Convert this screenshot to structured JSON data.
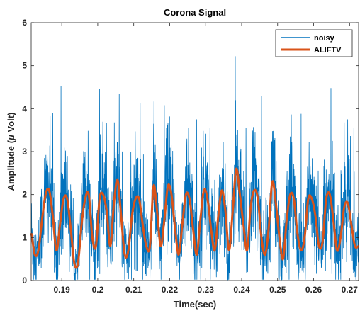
{
  "chart_data": {
    "type": "line",
    "title": "Corona Signal",
    "xlabel": "Time(sec)",
    "ylabel_prefix": "Amplitude (",
    "ylabel_mu": "μ",
    "ylabel_suffix": " Volt)",
    "xlim": [
      0.1815,
      0.2725
    ],
    "ylim": [
      0,
      6
    ],
    "xticks": [
      0.19,
      0.2,
      0.21,
      0.22,
      0.23,
      0.24,
      0.25,
      0.26,
      0.27
    ],
    "xtick_labels": [
      "0.19",
      "0.2",
      "0.21",
      "0.22",
      "0.23",
      "0.24",
      "0.25",
      "0.26",
      "0.27"
    ],
    "yticks": [
      0,
      1,
      2,
      3,
      4,
      5,
      6
    ],
    "ytick_labels": [
      "0",
      "1",
      "2",
      "3",
      "4",
      "5",
      "6"
    ],
    "grid": false,
    "legend_position": "top-right",
    "series": [
      {
        "name": "noisy",
        "color": "#0072BD",
        "description_peaks": [
          {
            "x": 0.1875,
            "y": 3.9
          },
          {
            "x": 0.1898,
            "y": 4.53
          },
          {
            "x": 0.2005,
            "y": 4.45
          },
          {
            "x": 0.2046,
            "y": 3.68
          },
          {
            "x": 0.2118,
            "y": 4.13
          },
          {
            "x": 0.2155,
            "y": 3.65
          },
          {
            "x": 0.2185,
            "y": 4.08
          },
          {
            "x": 0.2248,
            "y": 3.3
          },
          {
            "x": 0.2275,
            "y": 3.75
          },
          {
            "x": 0.2312,
            "y": 3.55
          },
          {
            "x": 0.2348,
            "y": 3.95
          },
          {
            "x": 0.2382,
            "y": 5.22
          },
          {
            "x": 0.2412,
            "y": 3.55
          },
          {
            "x": 0.2455,
            "y": 4.3
          },
          {
            "x": 0.2488,
            "y": 3.48
          },
          {
            "x": 0.2535,
            "y": 3.35
          },
          {
            "x": 0.2565,
            "y": 3.88
          },
          {
            "x": 0.2648,
            "y": 4.48
          },
          {
            "x": 0.2685,
            "y": 3.68
          },
          {
            "x": 0.2712,
            "y": 3.55
          }
        ]
      },
      {
        "name": "ALIFTV",
        "color": "#D95319",
        "x": [
          0.1815,
          0.1825,
          0.1835,
          0.1845,
          0.1855,
          0.1865,
          0.1875,
          0.1885,
          0.1895,
          0.1905,
          0.1915,
          0.1925,
          0.1935,
          0.1945,
          0.1955,
          0.1965,
          0.1975,
          0.1985,
          0.1995,
          0.2005,
          0.2015,
          0.2025,
          0.2035,
          0.2045,
          0.2055,
          0.2065,
          0.2075,
          0.2085,
          0.2095,
          0.2105,
          0.2115,
          0.2125,
          0.2135,
          0.2145,
          0.2155,
          0.2165,
          0.2175,
          0.2185,
          0.2195,
          0.2205,
          0.2215,
          0.2225,
          0.2235,
          0.2245,
          0.2255,
          0.2265,
          0.2275,
          0.2285,
          0.2295,
          0.2305,
          0.2315,
          0.2325,
          0.2335,
          0.2345,
          0.2355,
          0.2365,
          0.2375,
          0.2385,
          0.2395,
          0.2405,
          0.2415,
          0.2425,
          0.2435,
          0.2445,
          0.2455,
          0.2465,
          0.2475,
          0.2485,
          0.2495,
          0.2505,
          0.2515,
          0.2525,
          0.2535,
          0.2545,
          0.2555,
          0.2565,
          0.2575,
          0.2585,
          0.2595,
          0.2605,
          0.2615,
          0.2625,
          0.2635,
          0.2645,
          0.2655,
          0.2665,
          0.2675,
          0.2685,
          0.2695,
          0.2705,
          0.2715,
          0.2725
        ],
        "y": [
          1.1,
          0.6,
          0.7,
          1.4,
          2.0,
          2.1,
          1.5,
          0.7,
          1.3,
          1.9,
          1.9,
          1.2,
          0.4,
          0.4,
          1.3,
          1.9,
          2.0,
          1.0,
          0.8,
          1.9,
          2.0,
          1.6,
          0.8,
          1.8,
          2.35,
          1.5,
          0.6,
          0.7,
          1.5,
          1.9,
          1.9,
          1.3,
          0.8,
          0.8,
          2.2,
          1.6,
          0.8,
          1.4,
          2.2,
          2.0,
          1.2,
          0.6,
          1.3,
          2.0,
          1.9,
          1.2,
          0.6,
          1.4,
          2.1,
          1.9,
          1.2,
          0.7,
          1.5,
          2.1,
          1.6,
          0.7,
          1.6,
          2.6,
          2.0,
          1.3,
          0.7,
          1.7,
          2.1,
          1.9,
          1.0,
          0.6,
          1.2,
          2.3,
          1.8,
          1.0,
          0.5,
          1.4,
          2.0,
          1.9,
          1.1,
          0.7,
          1.0,
          1.9,
          1.9,
          1.5,
          0.8,
          0.9,
          1.9,
          2.0,
          1.4,
          0.7,
          1.0,
          1.7,
          1.8,
          1.3,
          0.8,
          0.8
        ]
      }
    ]
  },
  "legend": {
    "items": [
      "noisy",
      "ALIFTV"
    ]
  }
}
